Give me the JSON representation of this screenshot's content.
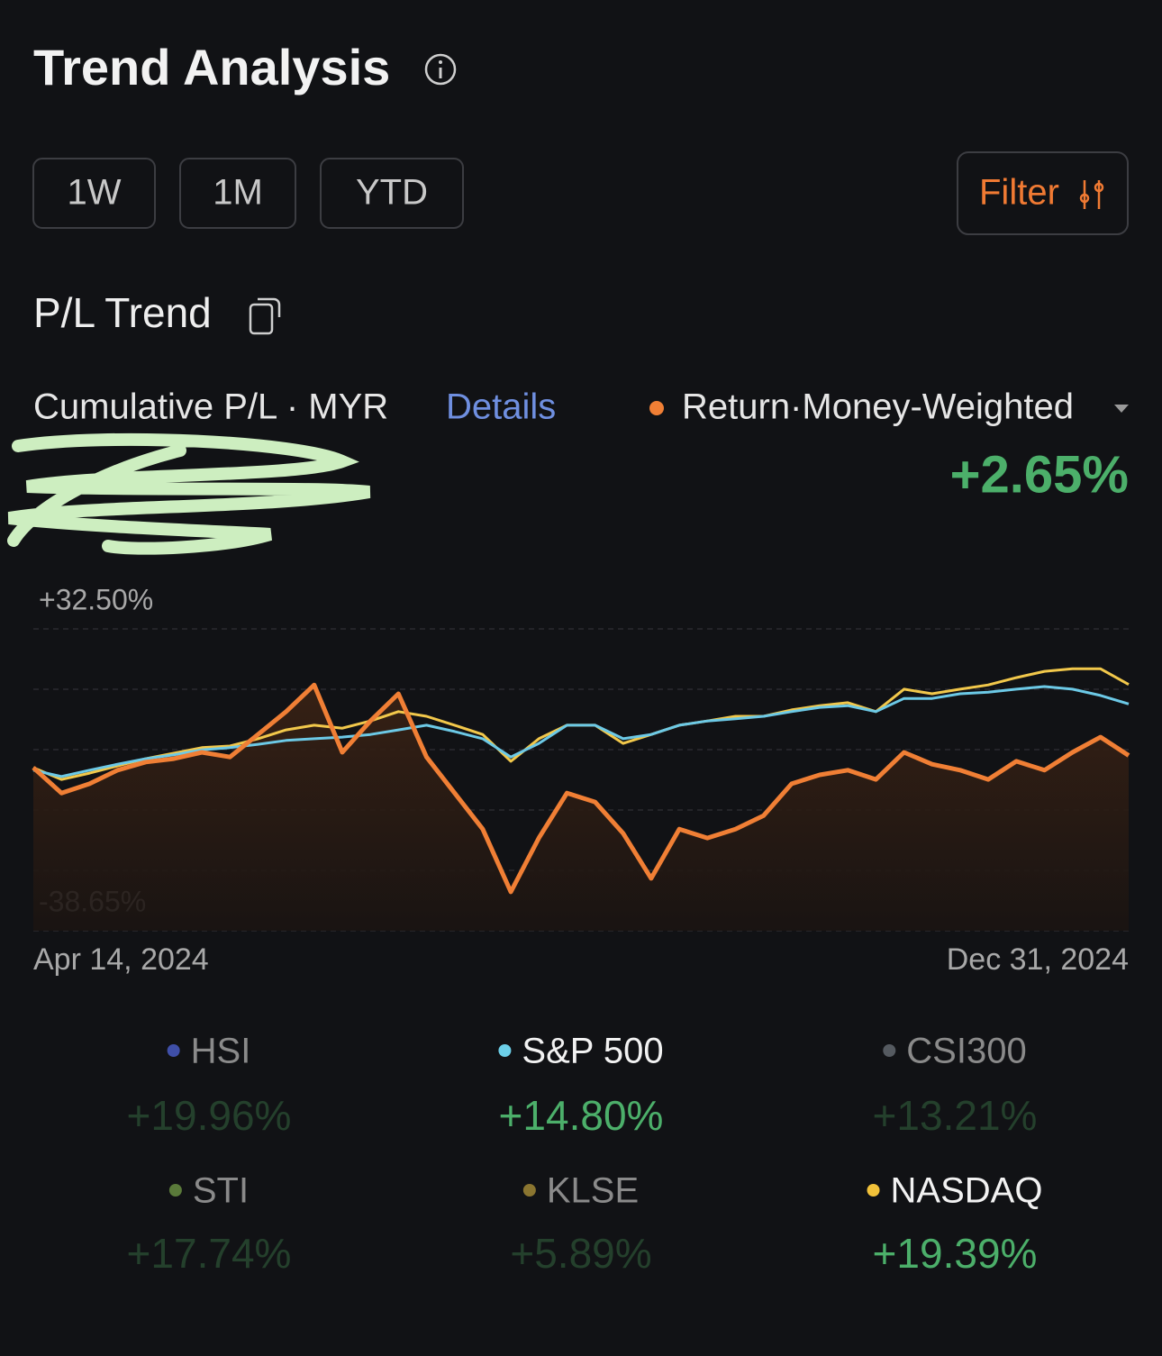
{
  "header": {
    "title": "Trend Analysis"
  },
  "periods": [
    "1W",
    "1M",
    "YTD"
  ],
  "filter": "Filter",
  "section": {
    "title": "P/L Trend",
    "subtitle": "Cumulative P/L · MYR",
    "details": "Details",
    "return": "+2.65%"
  },
  "chart_data": {
    "type": "line",
    "categories": [
      "Apr 14, 2024",
      null,
      null,
      null,
      null,
      null,
      null,
      null,
      null,
      null,
      null,
      null,
      null,
      null,
      null,
      null,
      null,
      null,
      null,
      null,
      null,
      null,
      null,
      null,
      null,
      null,
      null,
      null,
      null,
      null,
      null,
      null,
      null,
      null,
      null,
      null,
      null,
      null,
      null,
      "Dec 31, 2024"
    ],
    "series": [
      {
        "name": "Return·Money-Weighted",
        "color": "#f07f35",
        "area": true,
        "values": [
          -0.2,
          -6.2,
          -4.0,
          -0.8,
          1.1,
          1.9,
          3.4,
          2.3,
          7.6,
          13.0,
          19.3,
          3.4,
          10.8,
          17.2,
          2.3,
          -6.2,
          -14.7,
          -29.5,
          -16.8,
          -6.2,
          -8.3,
          -15.7,
          -26.3,
          -14.7,
          -16.8,
          -14.7,
          -11.5,
          -4.0,
          -1.9,
          -0.8,
          -3.0,
          3.4,
          0.6,
          -0.8,
          -3.0,
          1.3,
          -0.8,
          3.4,
          7.0,
          2.65
        ]
      },
      {
        "color": "#6cc9e6",
        "values": [
          -0.8,
          -2.3,
          -0.8,
          0.6,
          1.9,
          2.8,
          4.0,
          4.5,
          5.3,
          6.2,
          6.6,
          7.0,
          7.6,
          8.7,
          9.8,
          8.3,
          6.6,
          2.3,
          5.5,
          9.8,
          9.8,
          6.6,
          7.6,
          9.8,
          10.8,
          11.3,
          11.9,
          13.0,
          14.0,
          14.4,
          13.0,
          16.1,
          16.1,
          17.2,
          17.6,
          18.3,
          18.9,
          18.3,
          16.8,
          14.8
        ]
      },
      {
        "color": "#f2c84b",
        "values": [
          -0.2,
          -3.0,
          -1.5,
          0.2,
          1.9,
          3.2,
          4.5,
          4.9,
          6.6,
          8.7,
          9.8,
          9.1,
          10.8,
          13.0,
          11.9,
          9.8,
          7.6,
          1.3,
          6.6,
          9.8,
          9.8,
          5.5,
          7.6,
          9.8,
          10.8,
          11.9,
          11.9,
          13.4,
          14.4,
          15.1,
          13.0,
          18.3,
          17.2,
          18.3,
          19.3,
          21.0,
          22.5,
          23.1,
          23.1,
          19.39
        ]
      }
    ],
    "ylim": [
      -38.65,
      32.5
    ],
    "yticks": [
      {
        "value": 32.5,
        "label": "+32.50%"
      },
      {
        "value": -38.65,
        "label": "-38.65%"
      }
    ],
    "grid": true
  },
  "benchmarks": [
    {
      "name": "HSI",
      "color": "#3f4fa8",
      "return": "+19.96%",
      "active": false
    },
    {
      "name": "S&P 500",
      "color": "#6ccfe8",
      "return": "+14.80%",
      "active": true
    },
    {
      "name": "CSI300",
      "color": "#555a60",
      "return": "+13.21%",
      "active": false
    },
    {
      "name": "STI",
      "color": "#5a7a3a",
      "return": "+17.74%",
      "active": false
    },
    {
      "name": "KLSE",
      "color": "#8a7530",
      "return": "+5.89%",
      "active": false
    },
    {
      "name": "NASDAQ",
      "color": "#f2c23a",
      "return": "+19.39%",
      "active": true
    }
  ]
}
